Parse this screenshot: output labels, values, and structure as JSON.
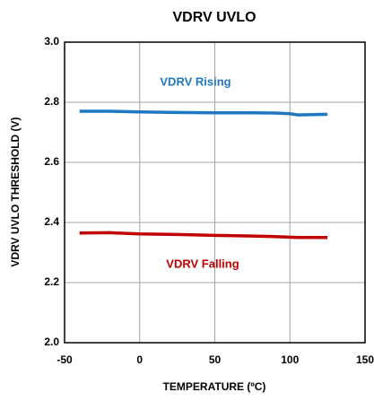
{
  "chart_data": {
    "type": "line",
    "title": "VDRV UVLO",
    "xlabel": "TEMPERATURE (ºC)",
    "ylabel": "VDRV UVLO THRESHOLD (V)",
    "x": [
      -40,
      -20,
      0,
      25,
      50,
      75,
      90,
      100,
      105,
      125
    ],
    "series": [
      {
        "name": "VDRV Rising",
        "color": "#1f77c0",
        "values": [
          2.77,
          2.77,
          2.768,
          2.766,
          2.765,
          2.765,
          2.764,
          2.762,
          2.758,
          2.76
        ]
      },
      {
        "name": "VDRV Falling",
        "color": "#c00000",
        "values": [
          2.365,
          2.366,
          2.362,
          2.36,
          2.357,
          2.355,
          2.353,
          2.351,
          2.35,
          2.35
        ]
      }
    ],
    "xlim": [
      -50,
      150
    ],
    "xticks": [
      -50,
      0,
      50,
      100,
      150
    ],
    "ylim": [
      2.0,
      3.0
    ],
    "yticks": [
      {
        "value": 2.0,
        "label": "2.0"
      },
      2.2,
      2.4,
      2.6,
      2.8,
      {
        "value": 3.0,
        "label": "3.0"
      }
    ],
    "grid": true
  }
}
